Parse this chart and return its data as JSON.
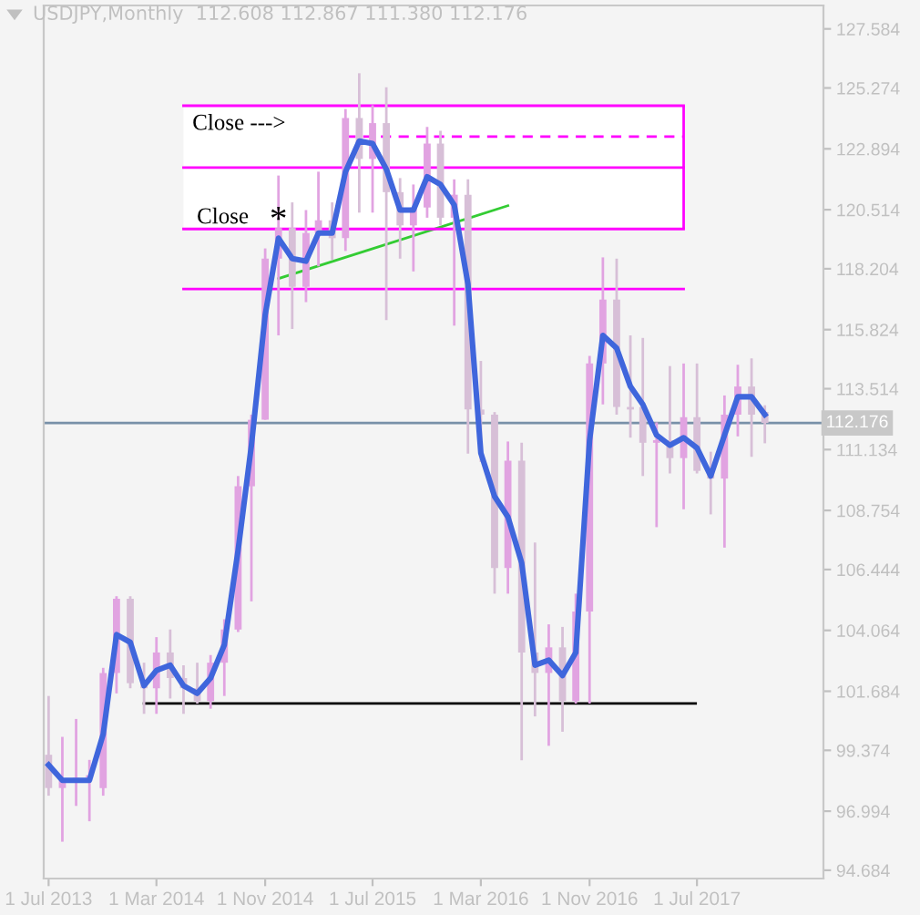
{
  "chart_data": {
    "type": "candlestick",
    "title": "USDJPY,Monthly  112.608 112.867 111.380 112.176",
    "x": [
      "2013-07",
      "2013-08",
      "2013-09",
      "2013-10",
      "2013-11",
      "2013-12",
      "2014-01",
      "2014-02",
      "2014-03",
      "2014-04",
      "2014-05",
      "2014-06",
      "2014-07",
      "2014-08",
      "2014-09",
      "2014-10",
      "2014-11",
      "2014-12",
      "2015-01",
      "2015-02",
      "2015-03",
      "2015-04",
      "2015-05",
      "2015-06",
      "2015-07",
      "2015-08",
      "2015-09",
      "2015-10",
      "2015-11",
      "2015-12",
      "2016-01",
      "2016-02",
      "2016-03",
      "2016-04",
      "2016-05",
      "2016-06",
      "2016-07",
      "2016-08",
      "2016-09",
      "2016-10",
      "2016-11",
      "2016-12",
      "2017-01",
      "2017-02",
      "2017-03",
      "2017-04",
      "2017-05",
      "2017-06",
      "2017-07",
      "2017-08",
      "2017-09",
      "2017-10",
      "2017-11",
      "2017-12"
    ],
    "ohlc": [
      [
        99.2,
        101.5,
        97.6,
        97.9
      ],
      [
        97.9,
        99.9,
        95.8,
        98.2
      ],
      [
        98.2,
        100.6,
        97.2,
        98.3
      ],
      [
        98.3,
        99.0,
        96.6,
        98.4
      ],
      [
        97.9,
        102.6,
        97.6,
        102.4
      ],
      [
        102.4,
        105.4,
        101.6,
        105.3
      ],
      [
        105.3,
        105.4,
        101.8,
        102.0
      ],
      [
        102.0,
        102.8,
        100.8,
        101.8
      ],
      [
        101.8,
        103.8,
        100.8,
        103.2
      ],
      [
        103.2,
        104.1,
        101.4,
        102.2
      ],
      [
        102.2,
        102.7,
        100.8,
        101.8
      ],
      [
        101.8,
        102.8,
        101.2,
        101.3
      ],
      [
        101.3,
        103.1,
        101.0,
        102.8
      ],
      [
        102.8,
        104.5,
        101.5,
        104.1
      ],
      [
        104.1,
        110.1,
        104.0,
        109.7
      ],
      [
        109.7,
        112.5,
        105.2,
        112.3
      ],
      [
        112.3,
        119.0,
        112.3,
        118.6
      ],
      [
        118.6,
        121.85,
        115.6,
        119.8
      ],
      [
        119.8,
        120.8,
        115.85,
        117.5
      ],
      [
        117.5,
        120.5,
        116.9,
        119.6
      ],
      [
        119.6,
        122.0,
        118.3,
        120.1
      ],
      [
        120.1,
        120.8,
        118.55,
        119.4
      ],
      [
        119.4,
        124.45,
        118.9,
        124.1
      ],
      [
        124.1,
        125.85,
        120.4,
        122.5
      ],
      [
        122.5,
        124.6,
        120.4,
        123.9
      ],
      [
        123.9,
        125.3,
        116.2,
        121.2
      ],
      [
        121.2,
        121.75,
        118.6,
        119.9
      ],
      [
        119.9,
        121.5,
        118.1,
        120.6
      ],
      [
        120.6,
        123.75,
        120.2,
        123.1
      ],
      [
        123.1,
        123.6,
        119.9,
        120.2
      ],
      [
        120.2,
        121.7,
        115.98,
        121.1
      ],
      [
        121.1,
        121.7,
        110.98,
        112.7
      ],
      [
        112.7,
        114.6,
        110.65,
        112.5
      ],
      [
        112.5,
        112.6,
        105.5,
        106.5
      ],
      [
        106.5,
        111.45,
        105.5,
        110.7
      ],
      [
        110.7,
        111.4,
        98.98,
        103.2
      ],
      [
        103.2,
        107.5,
        100.7,
        102.4
      ],
      [
        102.4,
        104.3,
        99.55,
        103.4
      ],
      [
        103.4,
        104.2,
        100.1,
        101.3
      ],
      [
        101.3,
        105.5,
        101.2,
        104.8
      ],
      [
        104.8,
        114.8,
        101.2,
        114.5
      ],
      [
        114.5,
        118.65,
        112.9,
        117.0
      ],
      [
        117.0,
        118.6,
        112.5,
        112.8
      ],
      [
        112.8,
        115.6,
        111.6,
        112.7
      ],
      [
        112.8,
        115.5,
        110.1,
        111.4
      ],
      [
        111.4,
        112.2,
        108.1,
        111.5
      ],
      [
        111.5,
        114.4,
        110.2,
        110.8
      ],
      [
        110.8,
        114.5,
        108.8,
        112.4
      ],
      [
        112.4,
        114.5,
        110.2,
        110.3
      ],
      [
        110.3,
        111.05,
        108.6,
        110.0
      ],
      [
        110.0,
        113.25,
        107.3,
        112.5
      ],
      [
        112.5,
        114.45,
        111.65,
        113.6
      ],
      [
        113.6,
        114.7,
        110.85,
        112.5
      ],
      [
        112.608,
        112.867,
        111.38,
        112.176
      ]
    ],
    "colors": [
      "#d7bfd7",
      "#e1a3e1",
      "#e1a3e1",
      "#e1a3e1",
      "#e1a3e1",
      "#e1a3e1",
      "#d7bfd7",
      "#d7bfd7",
      "#e1a3e1",
      "#d7bfd7",
      "#d7bfd7",
      "#d7bfd7",
      "#e1a3e1",
      "#e1a3e1",
      "#e1a3e1",
      "#e1a3e1",
      "#e1a3e1",
      "#e1a3e1",
      "#d7bfd7",
      "#e1a3e1",
      "#e1a3e1",
      "#d7bfd7",
      "#e1a3e1",
      "#d7bfd7",
      "#e1a3e1",
      "#d7bfd7",
      "#d7bfd7",
      "#e1a3e1",
      "#e1a3e1",
      "#d7bfd7",
      "#e1a3e1",
      "#d7bfd7",
      "#d7bfd7",
      "#d7bfd7",
      "#e1a3e1",
      "#d7bfd7",
      "#d7bfd7",
      "#e1a3e1",
      "#d7bfd7",
      "#e1a3e1",
      "#e1a3e1",
      "#e1a3e1",
      "#d7bfd7",
      "#d7bfd7",
      "#d7bfd7",
      "#e1a3e1",
      "#d7bfd7",
      "#e1a3e1",
      "#d7bfd7",
      "#d7bfd7",
      "#e1a3e1",
      "#e1a3e1",
      "#d7bfd7",
      "#d7bfd7"
    ],
    "series": [
      {
        "type": "line",
        "color": "#3f66dc",
        "values": [
          98.8,
          98.2,
          98.2,
          98.2,
          100.0,
          103.9,
          103.6,
          101.9,
          102.5,
          102.7,
          101.9,
          101.6,
          102.2,
          103.5,
          107.2,
          111.3,
          116.4,
          119.4,
          118.6,
          118.5,
          119.6,
          119.6,
          122.0,
          123.2,
          123.1,
          122.1,
          120.5,
          120.5,
          121.8,
          121.5,
          120.7,
          117.6,
          111.0,
          109.3,
          108.5,
          106.7,
          102.7,
          102.9,
          102.3,
          103.2,
          111.5,
          115.6,
          115.1,
          113.6,
          112.9,
          111.7,
          111.3,
          111.6,
          111.2,
          110.1,
          111.7,
          113.2,
          113.2,
          112.5
        ]
      },
      {
        "type": "line",
        "color": "#33cc33",
        "x": [
          "2014-12-01",
          "2016-05-01"
        ],
        "values": [
          117.82,
          120.67
        ]
      },
      {
        "type": "line",
        "color": "#000000",
        "x": [
          "2014-02-01",
          "2017-06-28"
        ],
        "values": [
          101.21,
          101.21
        ]
      },
      {
        "type": "line",
        "color": "#ff00ff",
        "x": [
          "2014-05-01",
          "2017-06-01"
        ],
        "values": [
          124.58,
          124.58
        ]
      },
      {
        "type": "line",
        "color": "#ff00ff",
        "x": [
          "2014-05-01",
          "2017-06-01"
        ],
        "values": [
          122.16,
          122.16
        ]
      },
      {
        "type": "line",
        "color": "#ff00ff",
        "x": [
          "2014-05-01",
          "2017-06-01"
        ],
        "values": [
          119.76,
          119.76
        ]
      },
      {
        "type": "line",
        "color": "#ff00ff",
        "x": [
          "2014-05-01",
          "2017-06-01"
        ],
        "values": [
          117.41,
          117.41
        ]
      },
      {
        "type": "line",
        "color": "#ff00ff",
        "line_style": "dashed",
        "x": [
          "2015-05-01",
          "2017-06-01"
        ],
        "values": [
          123.37,
          123.37
        ]
      }
    ],
    "ref_lines": [
      {
        "axis": "y",
        "value": 112.176,
        "label": "112.176",
        "color": "#7890a8"
      }
    ],
    "annotations": [
      "Close --->",
      "Close",
      "*"
    ],
    "xlim": [
      "2013-06-20",
      "2018-04-12"
    ],
    "xticks": [
      {
        "value": "2013-07-01",
        "label": "1 Jul 2013"
      },
      {
        "value": "2014-03-01",
        "label": "1 Mar 2014"
      },
      {
        "value": "2014-11-01",
        "label": "1 Nov 2014"
      },
      {
        "value": "2015-07-01",
        "label": "1 Jul 2015"
      },
      {
        "value": "2016-03-01",
        "label": "1 Mar 2016"
      },
      {
        "value": "2016-11-01",
        "label": "1 Nov 2016"
      },
      {
        "value": "2017-07-01",
        "label": "1 Jul 2017"
      }
    ],
    "ylim": [
      94.36,
      128.5
    ],
    "yticks": [
      94.684,
      96.994,
      99.374,
      101.684,
      104.064,
      106.444,
      108.754,
      111.134,
      113.514,
      115.824,
      118.204,
      120.514,
      122.894,
      125.274,
      127.584
    ]
  }
}
